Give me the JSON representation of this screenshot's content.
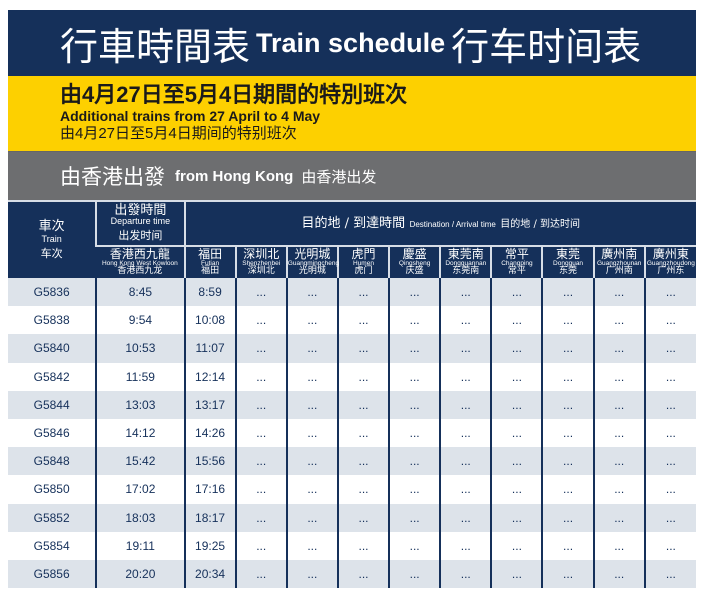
{
  "title": {
    "tc": "行車時間表",
    "en": "Train schedule",
    "sc": "行车时间表"
  },
  "notice": {
    "tc": "由4月27日至5月4日期間的特別班次",
    "en": "Additional trains from 27 April to 4 May",
    "sc": "由4月27日至5月4日期间的特别班次"
  },
  "direction": {
    "tc": "由香港出發",
    "en": "from Hong Kong",
    "sc": "由香港出发"
  },
  "header": {
    "train": {
      "tc": "車次",
      "en": "Train",
      "sc": "车次"
    },
    "departure": {
      "tc": "出發時間",
      "en": "Departure time",
      "sc": "出发时间"
    },
    "destination": {
      "tc": "目的地 / 到達時間",
      "en": "Destination / Arrival time",
      "sc": "目的地 / 到达时间"
    },
    "stations": [
      {
        "tc": "香港西九龍",
        "en": "Hong Kong West Kowloon",
        "sc": "香港西九龙"
      },
      {
        "tc": "福田",
        "en": "Futian",
        "sc": "福田"
      },
      {
        "tc": "深圳北",
        "en": "Shenzhenbei",
        "sc": "深圳北"
      },
      {
        "tc": "光明城",
        "en": "Guangmingcheng",
        "sc": "光明城"
      },
      {
        "tc": "虎門",
        "en": "Humen",
        "sc": "虎门"
      },
      {
        "tc": "慶盛",
        "en": "Qingsheng",
        "sc": "庆盛"
      },
      {
        "tc": "東莞南",
        "en": "Dongguannan",
        "sc": "东莞南"
      },
      {
        "tc": "常平",
        "en": "Changping",
        "sc": "常平"
      },
      {
        "tc": "東莞",
        "en": "Dongguan",
        "sc": "东莞"
      },
      {
        "tc": "廣州南",
        "en": "Guangzhounan",
        "sc": "广州南"
      },
      {
        "tc": "廣州東",
        "en": "Guangzhoudong",
        "sc": "广州东"
      }
    ]
  },
  "rows": [
    [
      "G5836",
      "8:45",
      "8:59",
      "...",
      "...",
      "...",
      "...",
      "...",
      "...",
      "...",
      "...",
      "..."
    ],
    [
      "G5838",
      "9:54",
      "10:08",
      "...",
      "...",
      "...",
      "...",
      "...",
      "...",
      "...",
      "...",
      "..."
    ],
    [
      "G5840",
      "10:53",
      "11:07",
      "...",
      "...",
      "...",
      "...",
      "...",
      "...",
      "...",
      "...",
      "..."
    ],
    [
      "G5842",
      "11:59",
      "12:14",
      "...",
      "...",
      "...",
      "...",
      "...",
      "...",
      "...",
      "...",
      "..."
    ],
    [
      "G5844",
      "13:03",
      "13:17",
      "...",
      "...",
      "...",
      "...",
      "...",
      "...",
      "...",
      "...",
      "..."
    ],
    [
      "G5846",
      "14:12",
      "14:26",
      "...",
      "...",
      "...",
      "...",
      "...",
      "...",
      "...",
      "...",
      "..."
    ],
    [
      "G5848",
      "15:42",
      "15:56",
      "...",
      "...",
      "...",
      "...",
      "...",
      "...",
      "...",
      "...",
      "..."
    ],
    [
      "G5850",
      "17:02",
      "17:16",
      "...",
      "...",
      "...",
      "...",
      "...",
      "...",
      "...",
      "...",
      "..."
    ],
    [
      "G5852",
      "18:03",
      "18:17",
      "...",
      "...",
      "...",
      "...",
      "...",
      "...",
      "...",
      "...",
      "..."
    ],
    [
      "G5854",
      "19:11",
      "19:25",
      "...",
      "...",
      "...",
      "...",
      "...",
      "...",
      "...",
      "...",
      "..."
    ],
    [
      "G5856",
      "20:20",
      "20:34",
      "...",
      "...",
      "...",
      "...",
      "...",
      "...",
      "...",
      "...",
      "..."
    ]
  ],
  "colors": {
    "navy": "#15305a",
    "yellow": "#fdd000",
    "grey": "#6d6e70",
    "row_alt": "#dde3ea"
  }
}
